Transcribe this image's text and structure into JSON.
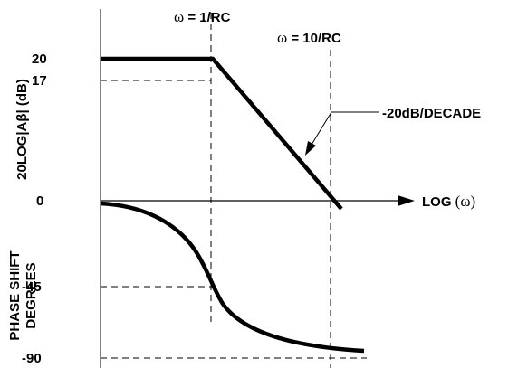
{
  "diagram": {
    "markers": {
      "w1": {
        "prefix": "ω",
        "text": " = 1/RC"
      },
      "w10": {
        "prefix": "ω",
        "text": " = 10/RC"
      }
    },
    "y_axis_gain": {
      "label": "20LOG|Aβ| (dB)",
      "ticks": [
        "20",
        "17",
        "0"
      ]
    },
    "y_axis_phase": {
      "label_line1": "PHASE SHIFT",
      "label_line2": "DEGREES",
      "ticks": [
        "-45",
        "-90"
      ]
    },
    "x_axis": {
      "label": "LOG ",
      "symbol": "(ω)"
    },
    "slope_annotation": "-20dB/DECADE"
  }
}
